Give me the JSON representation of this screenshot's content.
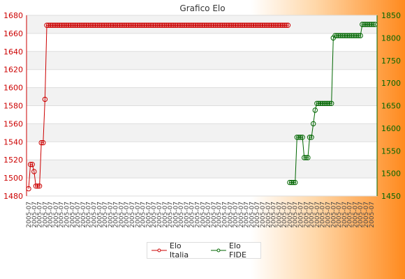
{
  "chart_data": {
    "type": "line",
    "title": "Grafico Elo",
    "axes": {
      "left": {
        "min": 1480,
        "max": 1680,
        "step": 20,
        "color": "#cc0000"
      },
      "right": {
        "min": 1450,
        "max": 1850,
        "step": 50,
        "color": "#006600"
      }
    },
    "x_label_text": "2005-07",
    "grid": true,
    "legend": "bottom-center",
    "series": [
      {
        "name": "Elo Italia",
        "axis": "left",
        "color": "#cc0000",
        "values": [
          1488,
          1515,
          1515,
          1507,
          1491,
          1491,
          1491,
          1539,
          1539,
          1587,
          1669,
          1669,
          1669,
          1669,
          1669,
          1669,
          1669,
          1669,
          1669,
          1669,
          1669,
          1669,
          1669,
          1669,
          1669,
          1669,
          1669,
          1669,
          1669,
          1669,
          1669,
          1669,
          1669,
          1669,
          1669,
          1669,
          1669,
          1669,
          1669,
          1669,
          1669,
          1669,
          1669,
          1669,
          1669,
          1669,
          1669,
          1669,
          1669,
          1669,
          1669,
          1669,
          1669,
          1669,
          1669,
          1669,
          1669,
          1669,
          1669,
          1669,
          1669,
          1669,
          1669,
          1669,
          1669,
          1669,
          1669,
          1669,
          1669,
          1669,
          1669,
          1669,
          1669,
          1669,
          1669,
          1669,
          1669,
          1669,
          1669,
          1669,
          1669,
          1669,
          1669,
          1669,
          1669,
          1669,
          1669,
          1669,
          1669,
          1669,
          1669,
          1669,
          1669,
          1669,
          1669,
          1669,
          1669,
          1669,
          1669,
          1669,
          1669,
          1669,
          1669,
          1669,
          1669,
          1669,
          1669,
          1669,
          1669,
          1669,
          1669,
          1669,
          1669,
          1669,
          1669,
          1669,
          1669,
          1669,
          1669,
          1669,
          1669,
          1669,
          1669,
          1669,
          1669,
          1669,
          1669,
          1669,
          1669,
          1669,
          1669,
          1669,
          1669,
          1669,
          1669,
          1669,
          1669,
          1669,
          1669,
          1669,
          1669,
          1669,
          1669,
          1669
        ]
      },
      {
        "name": "Elo FIDE",
        "axis": "right",
        "color": "#006600",
        "start_index": 144,
        "values": [
          1480,
          1480,
          1480,
          1480,
          1580,
          1580,
          1580,
          1580,
          1535,
          1535,
          1535,
          1580,
          1580,
          1610,
          1640,
          1655,
          1655,
          1655,
          1655,
          1655,
          1655,
          1655,
          1655,
          1655,
          1800,
          1805,
          1805,
          1805,
          1805,
          1805,
          1805,
          1805,
          1805,
          1805,
          1805,
          1805,
          1805,
          1805,
          1805,
          1805,
          1830,
          1830,
          1830,
          1830,
          1830,
          1830,
          1830,
          1830
        ]
      }
    ]
  }
}
